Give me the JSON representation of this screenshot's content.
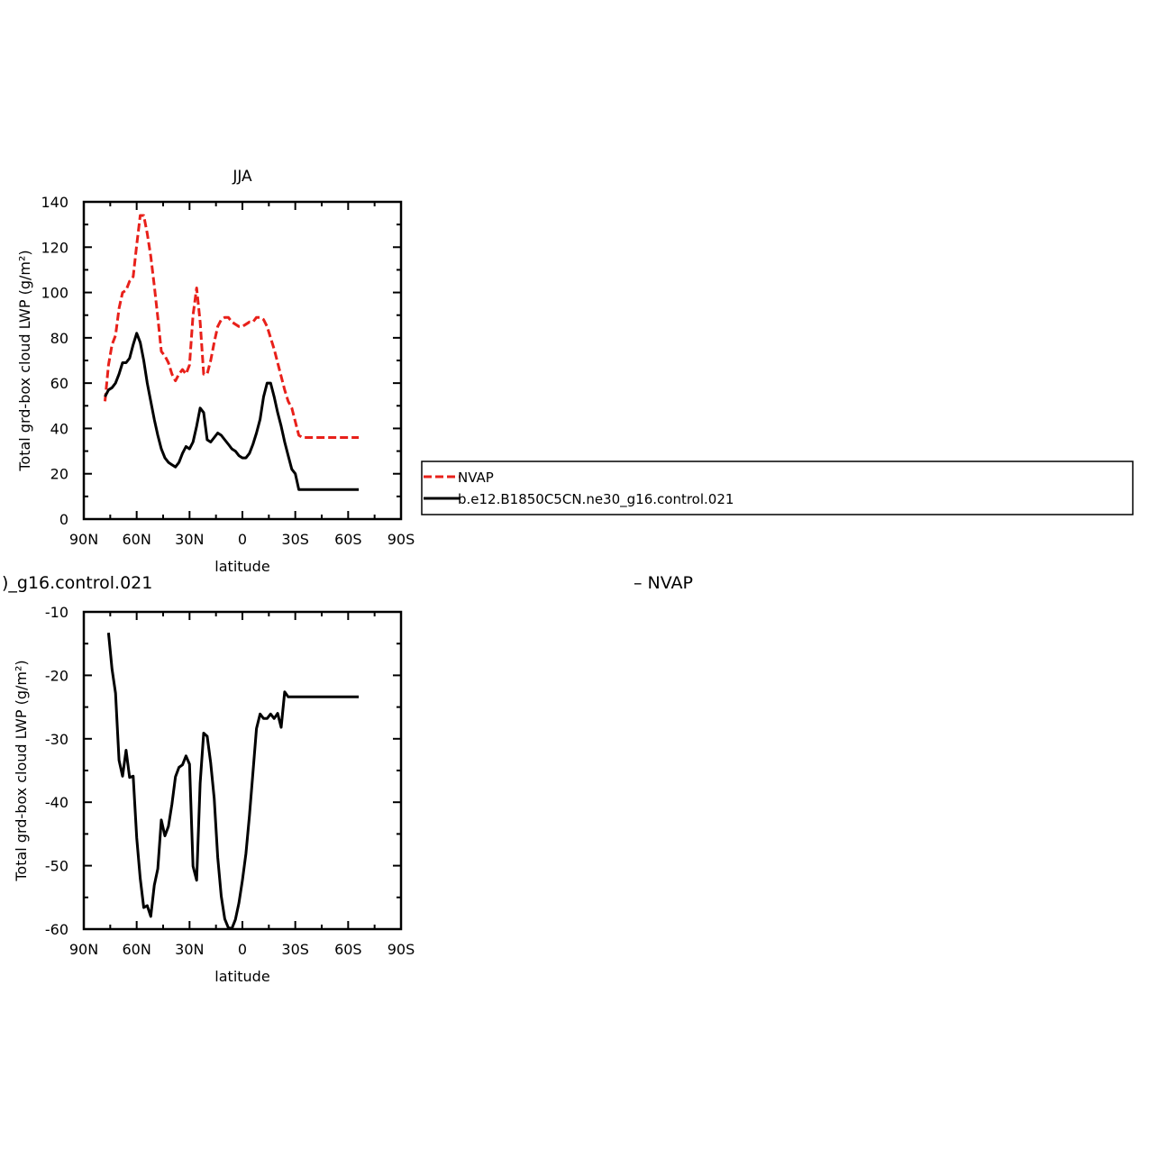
{
  "chart_data": [
    {
      "type": "line",
      "title": "JJA",
      "xlabel": "latitude",
      "ylabel": "Total grd-box cloud LWP (g/m²)",
      "xlim": [
        90,
        -90
      ],
      "ylim": [
        0,
        140
      ],
      "x_ticks": [
        90,
        60,
        30,
        0,
        -30,
        -60,
        -90
      ],
      "x_tick_labels": [
        "90N",
        "60N",
        "30N",
        "0",
        "30S",
        "60S",
        "90S"
      ],
      "y_ticks": [
        0,
        20,
        40,
        60,
        80,
        100,
        120,
        140
      ],
      "y_tick_labels": [
        "0",
        "20",
        "40",
        "60",
        "80",
        "100",
        "120",
        "140"
      ],
      "legend": {
        "placement": "right",
        "entries": [
          "NVAP",
          "b.e12.B1850C5CN.ne30_g16.control.021"
        ]
      },
      "series": [
        {
          "name": "NVAP",
          "color": "#e8201a",
          "dash": true,
          "x": [
            78,
            76,
            74,
            72,
            70,
            68,
            66,
            64,
            62,
            60,
            58,
            56,
            54,
            52,
            50,
            48,
            46,
            44,
            42,
            40,
            38,
            36,
            34,
            32,
            30,
            28,
            26,
            24,
            22,
            20,
            18,
            16,
            14,
            12,
            10,
            8,
            6,
            4,
            2,
            0,
            -2,
            -4,
            -6,
            -8,
            -10,
            -12,
            -14,
            -16,
            -18,
            -20,
            -22,
            -24,
            -26,
            -28,
            -30,
            -32,
            -34,
            -36,
            -38,
            -40,
            -42,
            -44,
            -46,
            -48,
            -50,
            -52,
            -54,
            -56,
            -58,
            -60,
            -62,
            -64,
            -66
          ],
          "y": [
            52,
            68,
            77,
            81,
            93,
            100,
            101,
            105,
            107,
            121,
            134,
            134,
            126,
            116,
            103,
            89,
            74,
            72,
            69,
            64,
            61,
            64,
            66,
            64,
            68,
            90,
            102,
            87,
            64,
            64,
            70,
            78,
            85,
            88,
            89,
            89,
            87,
            86,
            85,
            85,
            86,
            87,
            87,
            89,
            89,
            88,
            85,
            80,
            75,
            69,
            63,
            57,
            52,
            49,
            43,
            37,
            36,
            36,
            36,
            36,
            36,
            36,
            36,
            36,
            36,
            36,
            36,
            36,
            36,
            36,
            36,
            36,
            36
          ]
        },
        {
          "name": "b.e12.B1850C5CN.ne30_g16.control.021",
          "color": "#000000",
          "dash": false,
          "x": [
            78,
            76,
            74,
            72,
            70,
            68,
            66,
            64,
            62,
            60,
            58,
            56,
            54,
            52,
            50,
            48,
            46,
            44,
            42,
            40,
            38,
            36,
            34,
            32,
            30,
            28,
            26,
            24,
            22,
            20,
            18,
            16,
            14,
            12,
            10,
            8,
            6,
            4,
            2,
            0,
            -2,
            -4,
            -6,
            -8,
            -10,
            -12,
            -14,
            -16,
            -18,
            -20,
            -22,
            -24,
            -26,
            -28,
            -30,
            -32,
            -34,
            -36,
            -38,
            -40,
            -42,
            -44,
            -46,
            -48,
            -50,
            -52,
            -54,
            -56,
            -58,
            -60,
            -62,
            -64,
            -66
          ],
          "y": [
            54,
            57,
            58,
            60,
            64,
            69,
            69,
            71,
            77,
            82,
            78,
            70,
            60,
            52,
            44,
            37,
            31,
            27,
            25,
            24,
            23,
            25,
            29,
            32,
            31,
            34,
            41,
            49,
            47,
            35,
            34,
            36,
            38,
            37,
            35,
            33,
            31,
            30,
            28,
            27,
            27,
            29,
            33,
            38,
            44,
            54,
            60,
            60,
            54,
            47,
            41,
            34,
            28,
            22,
            20,
            13,
            13,
            13,
            13,
            13,
            13,
            13,
            13,
            13,
            13,
            13,
            13,
            13,
            13,
            13,
            13,
            13,
            13
          ]
        }
      ]
    },
    {
      "type": "line",
      "title_left": ")_g16.control.021",
      "title_right": "– NVAP",
      "xlabel": "latitude",
      "ylabel": "Total grd-box cloud LWP (g/m²)",
      "xlim": [
        90,
        -90
      ],
      "ylim": [
        -60,
        -10
      ],
      "x_ticks": [
        90,
        60,
        30,
        0,
        -30,
        -60,
        -90
      ],
      "x_tick_labels": [
        "90N",
        "60N",
        "30N",
        "0",
        "30S",
        "60S",
        "90S"
      ],
      "y_ticks": [
        -60,
        -50,
        -40,
        -30,
        -20,
        -10
      ],
      "y_tick_labels": [
        "-60",
        "-50",
        "-40",
        "-30",
        "-20",
        "-10"
      ],
      "series": [
        {
          "color": "#000000",
          "dash": false,
          "x": [
            76,
            74,
            72,
            70,
            68,
            66,
            64,
            62,
            60,
            58,
            56,
            54,
            52,
            50,
            48,
            46,
            44,
            42,
            40,
            38,
            36,
            34,
            32,
            30,
            28,
            26,
            24,
            22,
            20,
            18,
            16,
            14,
            12,
            10,
            8,
            6,
            4,
            2,
            0,
            -2,
            -4,
            -6,
            -8,
            -10,
            -12,
            -14,
            -16,
            -18,
            -20,
            -22,
            -24,
            -26,
            -28,
            -30,
            -32,
            -34,
            -36,
            -38,
            -40,
            -42,
            -44,
            -46,
            -48,
            -50,
            -52,
            -54,
            -56,
            -58,
            -60,
            -62,
            -64,
            -66
          ],
          "y": [
            -13.3,
            -19,
            -22.8,
            -33.4,
            -35.9,
            -31.8,
            -36.1,
            -35.9,
            -45.6,
            -52,
            -56.6,
            -56.3,
            -58,
            -53.1,
            -50.5,
            -42.8,
            -45.3,
            -43.8,
            -40.3,
            -36,
            -34.5,
            -34.1,
            -32.7,
            -34,
            -50.1,
            -52.3,
            -37,
            -29.1,
            -29.6,
            -33.8,
            -39.4,
            -48.7,
            -54.8,
            -58.4,
            -59.8,
            -59.9,
            -58.5,
            -55.9,
            -52.3,
            -48.1,
            -42.1,
            -35.3,
            -28.4,
            -26.1,
            -26.8,
            -26.8,
            -26.1,
            -26.8,
            -26,
            -28.2,
            -22.6,
            -23.4,
            -23.4,
            -23.4,
            -23.4,
            -23.4,
            -23.4,
            -23.4,
            -23.4,
            -23.4,
            -23.4,
            -23.4,
            -23.4,
            -23.4,
            -23.4,
            -23.4,
            -23.4,
            -23.4,
            -23.4,
            -23.4,
            -23.4,
            -23.4
          ]
        }
      ]
    }
  ]
}
